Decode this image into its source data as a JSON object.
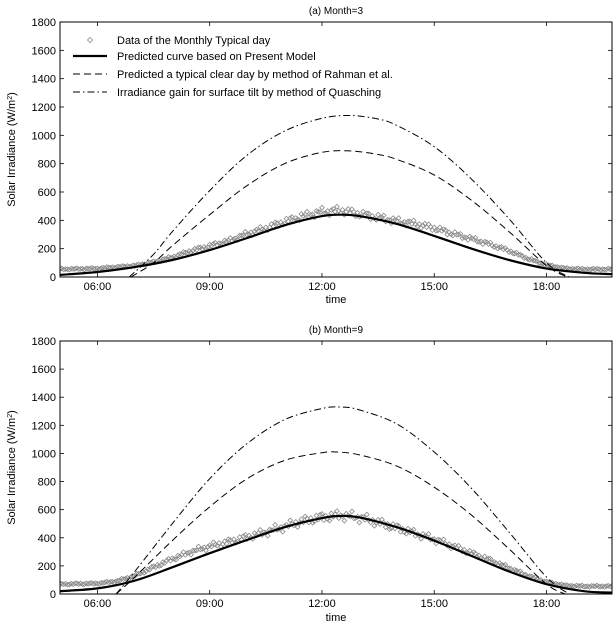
{
  "chart_data": [
    {
      "type": "line",
      "title": "(a) Month=3",
      "xlabel": "time",
      "ylabel": "Solar Irradiance (W/m²)",
      "ylabel_main": "Solar Irradiance (W/m",
      "ylabel_sup": "2",
      "ylabel_end": ")",
      "xlim": [
        5.0,
        19.75
      ],
      "ylim": [
        0,
        1800
      ],
      "x_ticks": [
        6,
        9,
        12,
        15,
        18
      ],
      "x_tick_labels": [
        "06:00",
        "09:00",
        "12:00",
        "15:00",
        "18:00"
      ],
      "y_ticks": [
        0,
        200,
        400,
        600,
        800,
        1000,
        1200,
        1400,
        1600,
        1800
      ],
      "y_tick_labels": [
        "0",
        "200",
        "400",
        "600",
        "800",
        "1000",
        "1200",
        "1400",
        "1600",
        "1800"
      ],
      "legend_position": "top-left",
      "series": [
        {
          "name": "Data of the Monthly Typical day",
          "style": "markers",
          "color": "#8a8a8a",
          "x": [
            5.0,
            6.0,
            7.0,
            7.5,
            8.0,
            8.5,
            9.0,
            9.5,
            10.0,
            10.5,
            11.0,
            11.5,
            12.0,
            12.5,
            13.0,
            13.5,
            14.0,
            14.5,
            15.0,
            15.5,
            16.0,
            16.5,
            17.0,
            17.5,
            18.0,
            18.5,
            19.0,
            19.75
          ],
          "y": [
            55,
            60,
            80,
            105,
            140,
            185,
            220,
            255,
            305,
            345,
            390,
            430,
            460,
            470,
            445,
            420,
            395,
            375,
            345,
            305,
            270,
            230,
            185,
            130,
            85,
            60,
            55,
            55
          ]
        },
        {
          "name": "Predicted curve based on Present Model",
          "style": "solid",
          "color": "#000000",
          "x": [
            5.0,
            6.0,
            7.0,
            8.0,
            9.0,
            10.0,
            11.0,
            12.0,
            12.5,
            13.0,
            14.0,
            15.0,
            16.0,
            17.0,
            18.0,
            19.0,
            19.75
          ],
          "y": [
            15,
            35,
            70,
            120,
            190,
            275,
            365,
            430,
            440,
            430,
            375,
            290,
            200,
            120,
            60,
            30,
            20
          ]
        },
        {
          "name": "Predicted a typical clear day by method of Rahman et al.",
          "style": "dashed",
          "color": "#000000",
          "x": [
            6.9,
            7.5,
            8.0,
            9.0,
            10.0,
            11.0,
            12.0,
            12.75,
            13.5,
            14.0,
            15.0,
            16.0,
            17.0,
            18.0,
            18.55
          ],
          "y": [
            0,
            100,
            220,
            440,
            645,
            800,
            880,
            890,
            865,
            830,
            720,
            540,
            320,
            80,
            0
          ]
        },
        {
          "name": "Irradiance gain for surface tilt by method of Quasching",
          "style": "dashdot",
          "color": "#000000",
          "x": [
            6.85,
            7.5,
            8.0,
            9.0,
            10.0,
            11.0,
            12.0,
            12.75,
            13.5,
            14.0,
            15.0,
            16.0,
            17.0,
            18.0,
            18.6
          ],
          "y": [
            0,
            160,
            320,
            610,
            860,
            1030,
            1120,
            1140,
            1115,
            1070,
            920,
            690,
            410,
            100,
            0
          ]
        }
      ]
    },
    {
      "type": "line",
      "title": "(b) Month=9",
      "xlabel": "time",
      "ylabel": "Solar Irradiance (W/m²)",
      "ylabel_main": "Solar Irradiance (W/m",
      "ylabel_sup": "2",
      "ylabel_end": ")",
      "xlim": [
        5.0,
        19.75
      ],
      "ylim": [
        0,
        1800
      ],
      "x_ticks": [
        6,
        9,
        12,
        15,
        18
      ],
      "x_tick_labels": [
        "06:00",
        "09:00",
        "12:00",
        "15:00",
        "18:00"
      ],
      "y_ticks": [
        0,
        200,
        400,
        600,
        800,
        1000,
        1200,
        1400,
        1600,
        1800
      ],
      "y_tick_labels": [
        "0",
        "200",
        "400",
        "600",
        "800",
        "1000",
        "1200",
        "1400",
        "1600",
        "1800"
      ],
      "series": [
        {
          "name": "Data of the Monthly Typical day",
          "style": "markers",
          "color": "#8a8a8a",
          "x": [
            5.0,
            6.0,
            6.5,
            7.0,
            7.5,
            8.0,
            8.5,
            9.0,
            9.5,
            10.0,
            10.5,
            11.0,
            11.5,
            12.0,
            12.5,
            13.0,
            13.5,
            14.0,
            14.5,
            15.0,
            15.5,
            16.0,
            16.5,
            17.0,
            17.5,
            18.0,
            18.5,
            19.0,
            19.75
          ],
          "y": [
            70,
            75,
            90,
            130,
            190,
            250,
            300,
            340,
            370,
            405,
            440,
            480,
            520,
            545,
            560,
            545,
            510,
            470,
            430,
            390,
            340,
            290,
            240,
            185,
            130,
            85,
            60,
            55,
            55
          ]
        },
        {
          "name": "Predicted curve based on Present Model",
          "style": "solid",
          "color": "#000000",
          "x": [
            5.0,
            6.0,
            7.0,
            8.0,
            9.0,
            10.0,
            11.0,
            12.0,
            12.5,
            13.0,
            14.0,
            15.0,
            16.0,
            17.0,
            18.0,
            19.0,
            19.75
          ],
          "y": [
            20,
            40,
            95,
            190,
            290,
            385,
            475,
            540,
            555,
            545,
            475,
            380,
            270,
            160,
            70,
            20,
            10
          ]
        },
        {
          "name": "Predicted a typical clear day by method of Rahman et al.",
          "style": "dashed",
          "color": "#000000",
          "x": [
            6.5,
            7.0,
            8.0,
            9.0,
            10.0,
            11.0,
            12.0,
            12.4,
            13.0,
            14.0,
            15.0,
            16.0,
            17.0,
            18.0,
            18.5
          ],
          "y": [
            0,
            120,
            380,
            620,
            820,
            950,
            1005,
            1010,
            990,
            910,
            760,
            560,
            320,
            70,
            0
          ]
        },
        {
          "name": "Irradiance gain for surface tilt by method of Quasching",
          "style": "dashdot",
          "color": "#000000",
          "x": [
            6.5,
            7.0,
            8.0,
            9.0,
            10.0,
            11.0,
            12.0,
            12.5,
            13.0,
            14.0,
            15.0,
            16.0,
            17.0,
            18.0,
            18.6
          ],
          "y": [
            0,
            160,
            500,
            820,
            1070,
            1240,
            1320,
            1330,
            1310,
            1210,
            1010,
            750,
            440,
            120,
            0
          ]
        }
      ]
    }
  ]
}
